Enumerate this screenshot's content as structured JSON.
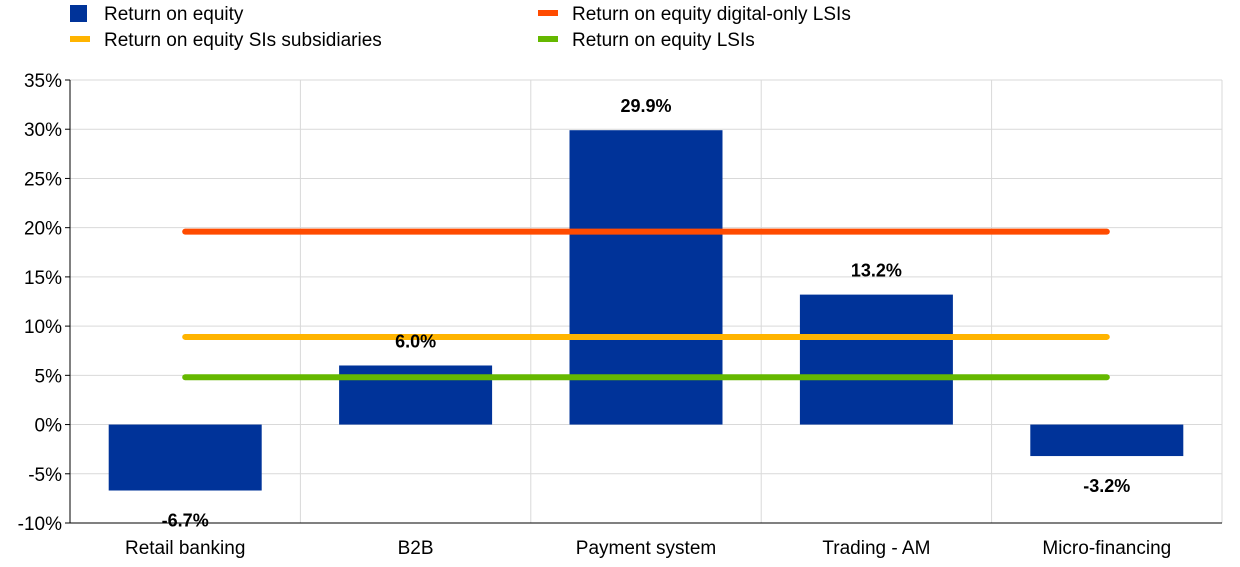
{
  "colors": {
    "bar": "#003399",
    "digital_lsis": "#ff4b00",
    "si_subsidiaries": "#ffb400",
    "lsis": "#65b800",
    "grid": "#d9d9d9",
    "axis": "#000000"
  },
  "legend": [
    {
      "label": "Return on equity",
      "shape": "square",
      "color_key": "bar"
    },
    {
      "label": "Return on equity digital-only LSIs",
      "shape": "line",
      "color_key": "digital_lsis"
    },
    {
      "label": "Return on equity SIs subsidiaries",
      "shape": "line",
      "color_key": "si_subsidiaries"
    },
    {
      "label": "Return on equity LSIs",
      "shape": "line",
      "color_key": "lsis"
    }
  ],
  "chart_data": {
    "type": "bar",
    "categories": [
      "Retail banking",
      "B2B",
      "Payment system",
      "Trading - AM",
      "Micro-financing"
    ],
    "series": [
      {
        "name": "Return on equity",
        "values": [
          -6.7,
          6.0,
          29.9,
          13.2,
          -3.2
        ],
        "labels": [
          "-6.7%",
          "6.0%",
          "29.9%",
          "13.2%",
          "-3.2%"
        ]
      }
    ],
    "reference_lines": [
      {
        "name": "Return on equity digital-only LSIs",
        "value": 19.6,
        "color_key": "digital_lsis"
      },
      {
        "name": "Return on equity SIs subsidiaries",
        "value": 8.9,
        "color_key": "si_subsidiaries"
      },
      {
        "name": "Return on equity LSIs",
        "value": 4.8,
        "color_key": "lsis"
      }
    ],
    "ylim": [
      -10,
      35
    ],
    "yticks": [
      35,
      30,
      25,
      20,
      15,
      10,
      5,
      0,
      -5,
      -10
    ],
    "ytick_labels": [
      "35%",
      "30%",
      "25%",
      "20%",
      "15%",
      "10%",
      "5%",
      "0%",
      "-5%",
      "-10%"
    ],
    "grid": true,
    "legend_position": "top"
  }
}
